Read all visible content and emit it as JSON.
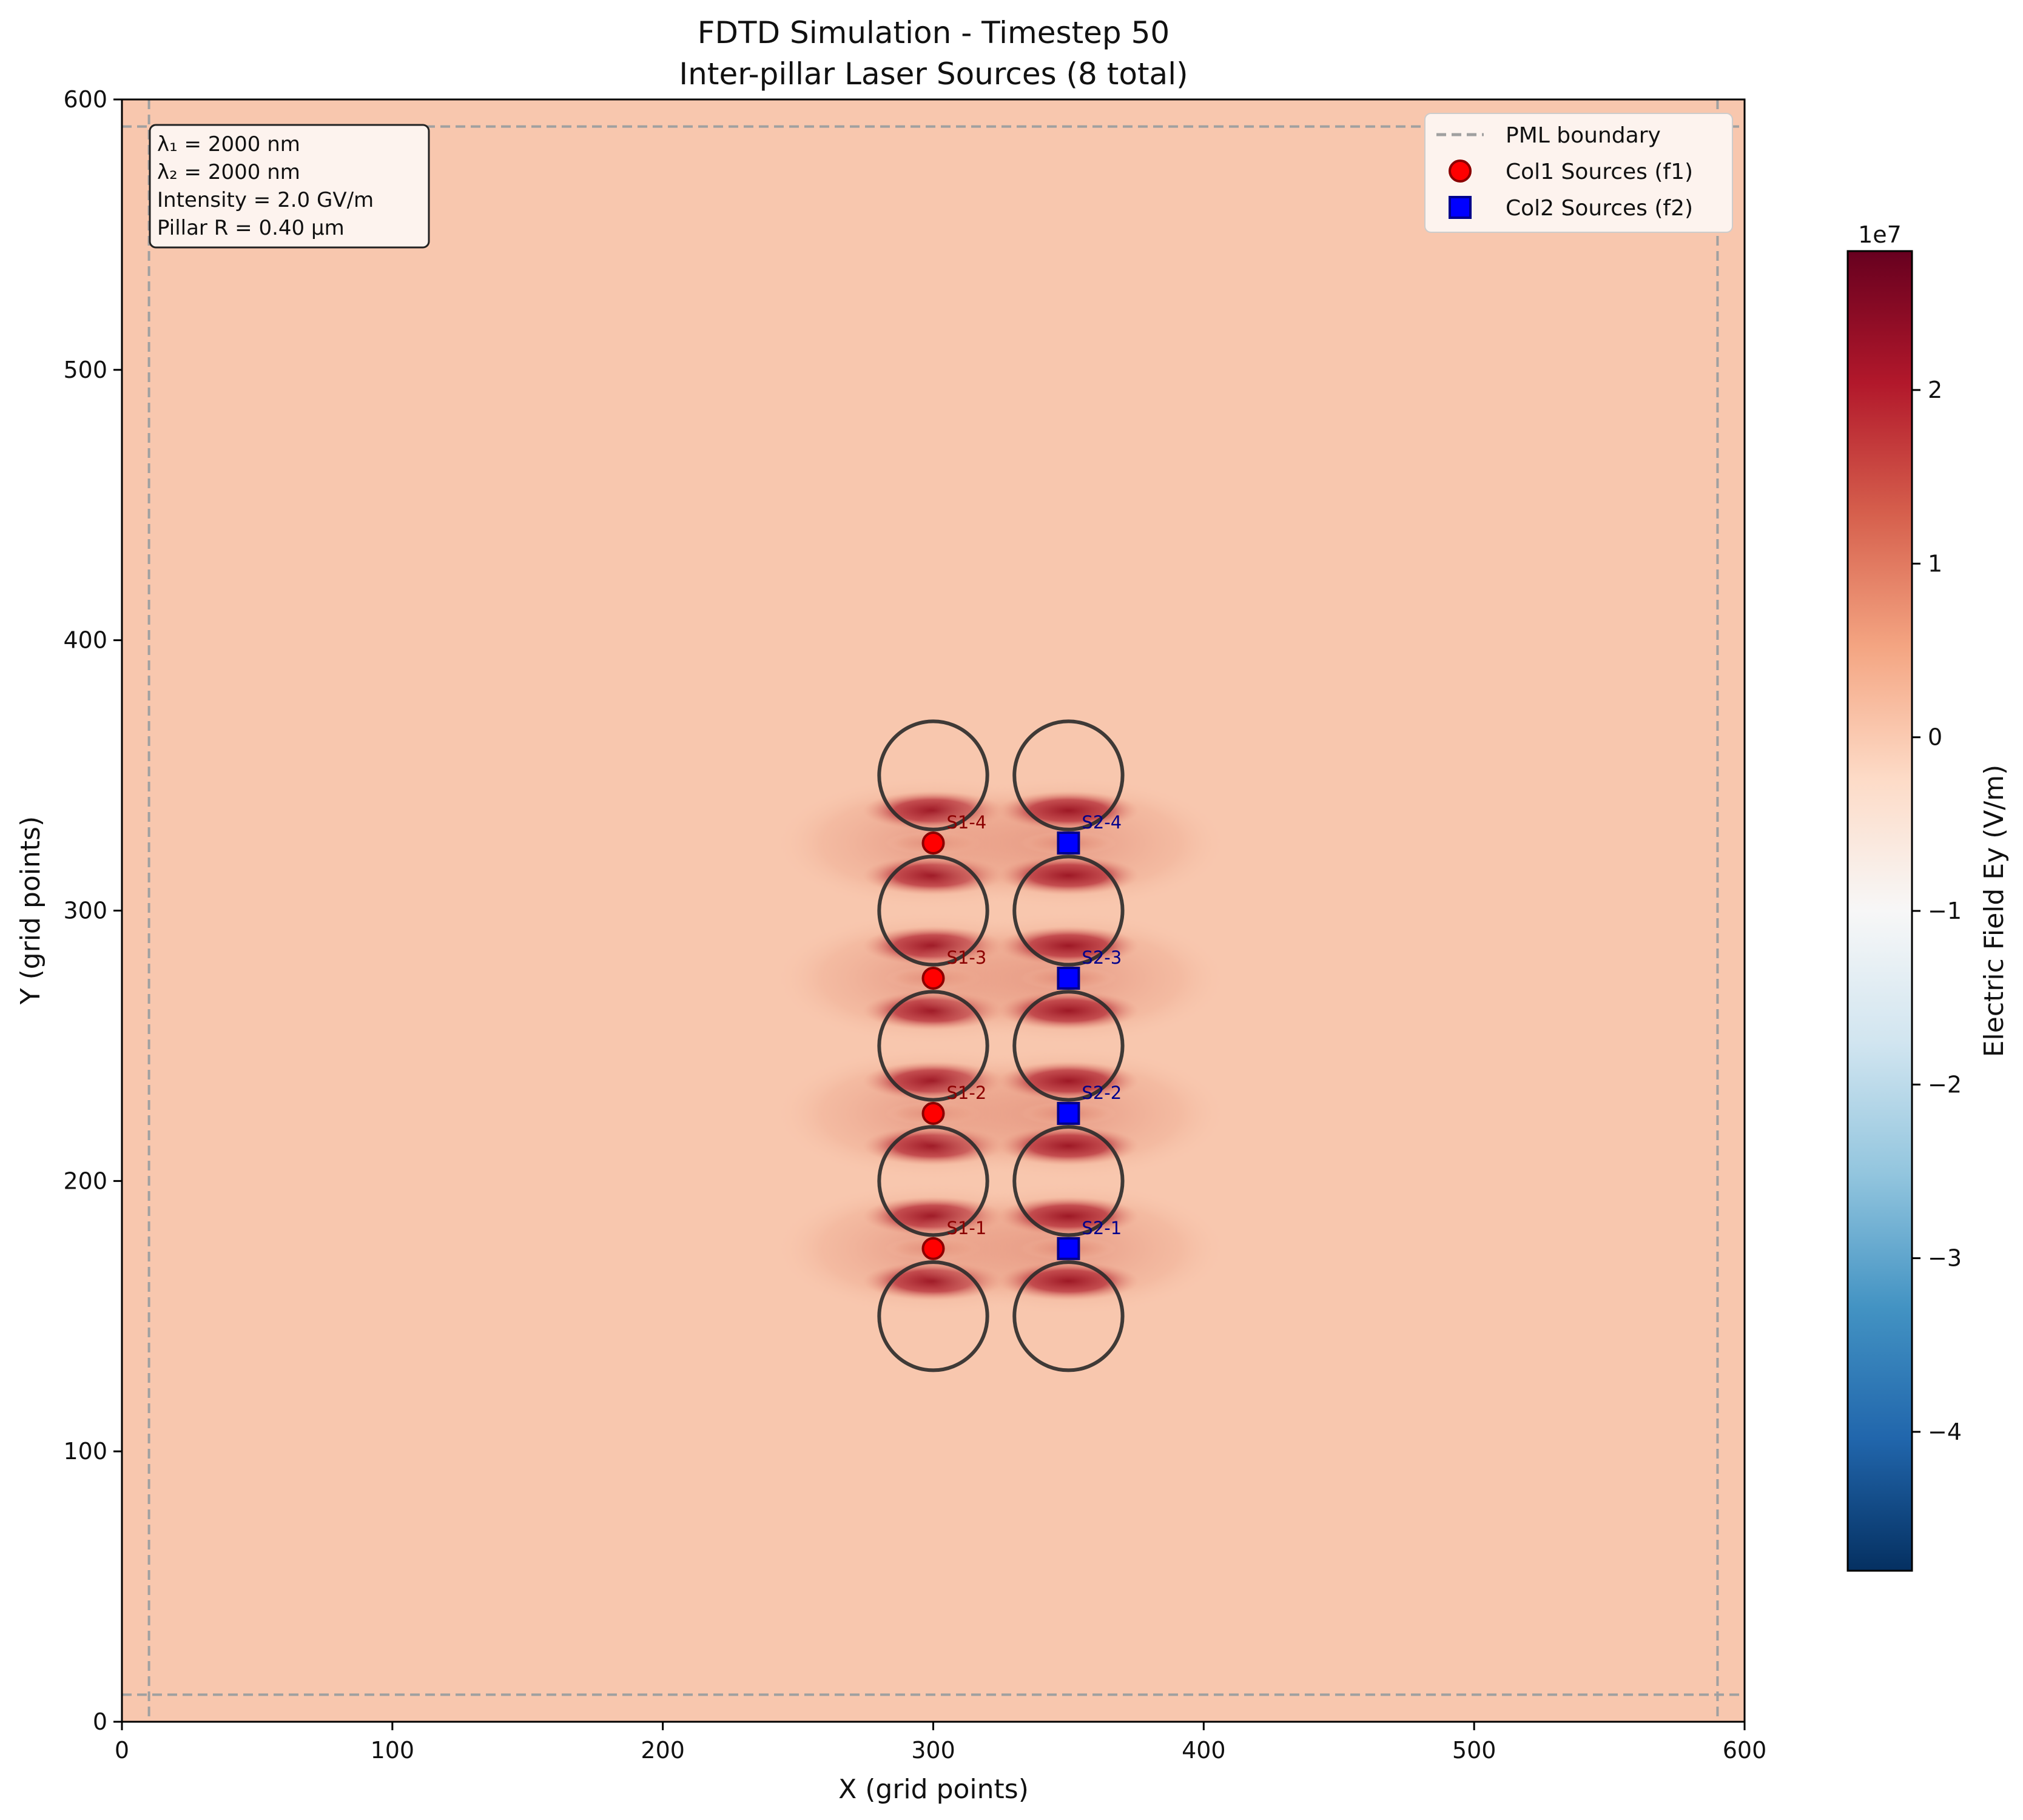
{
  "chart_data": {
    "type": "heatmap",
    "title": "FDTD Simulation - Timestep 50",
    "subtitle": "Inter-pillar Laser Sources (8 total)",
    "xlabel": "X (grid points)",
    "ylabel": "Y (grid points)",
    "xlim": [
      0,
      600
    ],
    "ylim": [
      0,
      600
    ],
    "xticks": [
      0,
      100,
      200,
      300,
      400,
      500,
      600
    ],
    "yticks": [
      0,
      100,
      200,
      300,
      400,
      500,
      600
    ],
    "pml_boundary": {
      "label": "PML boundary",
      "positions": [
        10,
        590
      ]
    },
    "info_box": [
      "λ₁ = 2000 nm",
      "λ₂ = 2000 nm",
      "Intensity = 2.0 GV/m",
      "Pillar R = 0.40 µm"
    ],
    "pillars": {
      "radius": 20,
      "centers": [
        [
          300,
          150
        ],
        [
          300,
          200
        ],
        [
          300,
          250
        ],
        [
          300,
          300
        ],
        [
          300,
          350
        ],
        [
          350,
          150
        ],
        [
          350,
          200
        ],
        [
          350,
          250
        ],
        [
          350,
          300
        ],
        [
          350,
          350
        ]
      ]
    },
    "sources": [
      {
        "name": "Col1 Sources (f1)",
        "marker": "circle",
        "color": "#ff0000",
        "label_color": "#8b0000",
        "points": [
          {
            "label": "S1-1",
            "x": 300,
            "y": 175
          },
          {
            "label": "S1-2",
            "x": 300,
            "y": 225
          },
          {
            "label": "S1-3",
            "x": 300,
            "y": 275
          },
          {
            "label": "S1-4",
            "x": 300,
            "y": 325
          }
        ]
      },
      {
        "name": "Col2 Sources (f2)",
        "marker": "square",
        "color": "#0000ff",
        "label_color": "#00008b",
        "points": [
          {
            "label": "S2-1",
            "x": 350,
            "y": 175
          },
          {
            "label": "S2-2",
            "x": 350,
            "y": 225
          },
          {
            "label": "S2-3",
            "x": 350,
            "y": 275
          },
          {
            "label": "S2-4",
            "x": 350,
            "y": 325
          }
        ]
      }
    ],
    "field": {
      "background_value": 0,
      "peak_value": 27000000.0
    },
    "colorbar": {
      "label": "Electric Field Ey (V/m)",
      "exponent_label": "1e7",
      "range": [
        -4.8,
        2.8
      ],
      "ticks": [
        -4,
        -3,
        -2,
        -1,
        0,
        1,
        2
      ],
      "tick_labels": [
        "−4",
        "−3",
        "−2",
        "−1",
        "0",
        "1",
        "2"
      ],
      "colormap": "RdBu_r"
    },
    "legend": {
      "position": "top-right"
    }
  }
}
